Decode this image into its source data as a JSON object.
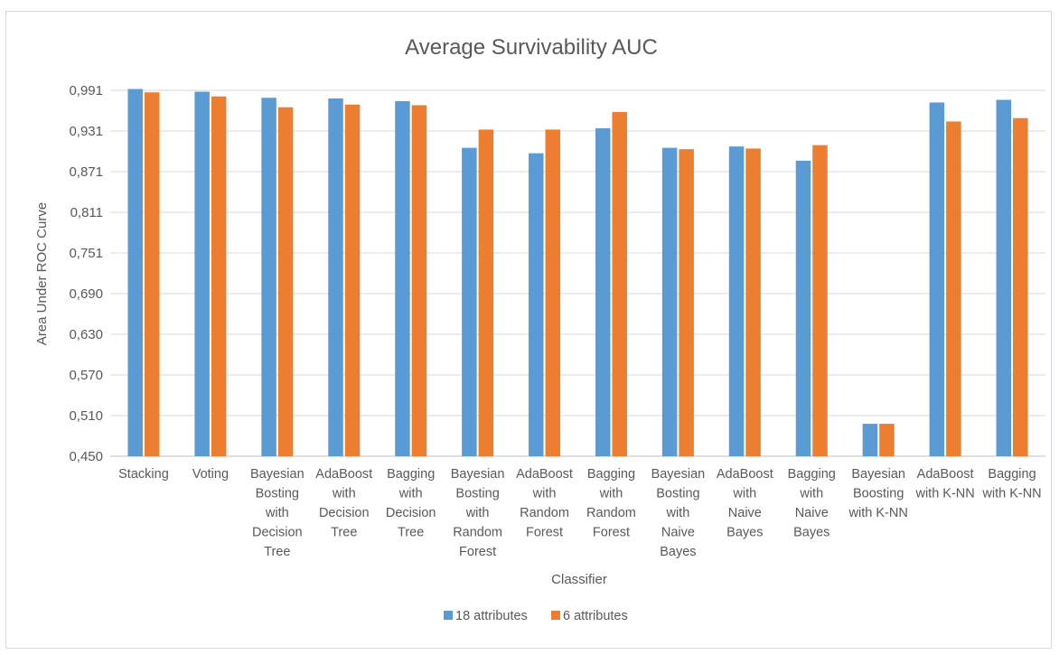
{
  "chart_data": {
    "type": "bar",
    "title": "Average Survivability AUC",
    "xlabel": "Classifier",
    "ylabel": "Area Under ROC Curve",
    "ylim": [
      0.45,
      0.991
    ],
    "yticks": [
      "0,991",
      "0,931",
      "0,871",
      "0,811",
      "0,751",
      "0,690",
      "0,630",
      "0,570",
      "0,510",
      "0,450"
    ],
    "grid": true,
    "legend_position": "bottom",
    "categories": [
      [
        "Stacking"
      ],
      [
        "Voting"
      ],
      [
        "Bayesian",
        "Bosting",
        "with",
        "Decision",
        "Tree"
      ],
      [
        "AdaBoost",
        "with",
        "Decision",
        "Tree"
      ],
      [
        "Bagging",
        "with",
        "Decision",
        "Tree"
      ],
      [
        "Bayesian",
        "Bosting",
        "with",
        "Random",
        "Forest"
      ],
      [
        "AdaBoost",
        "with",
        "Random",
        "Forest"
      ],
      [
        "Bagging",
        "with",
        "Random",
        "Forest"
      ],
      [
        "Bayesian",
        "Bosting",
        "with",
        "Naive",
        "Bayes"
      ],
      [
        "AdaBoost",
        "with",
        "Naive",
        "Bayes"
      ],
      [
        "Bagging",
        "with",
        "Naive",
        "Bayes"
      ],
      [
        "Bayesian",
        "Boosting",
        "with K-NN"
      ],
      [
        "AdaBoost",
        "with K-NN"
      ],
      [
        "Bagging",
        "with K-NN"
      ]
    ],
    "series": [
      {
        "name": "18 attributes",
        "color": "#5b9bd5",
        "values": [
          0.993,
          0.989,
          0.98,
          0.979,
          0.975,
          0.906,
          0.898,
          0.935,
          0.906,
          0.908,
          0.887,
          0.498,
          0.973,
          0.977
        ]
      },
      {
        "name": "6 attributes",
        "color": "#ed7d31",
        "values": [
          0.988,
          0.982,
          0.966,
          0.97,
          0.969,
          0.933,
          0.933,
          0.959,
          0.904,
          0.905,
          0.91,
          0.498,
          0.945,
          0.95
        ]
      }
    ]
  }
}
